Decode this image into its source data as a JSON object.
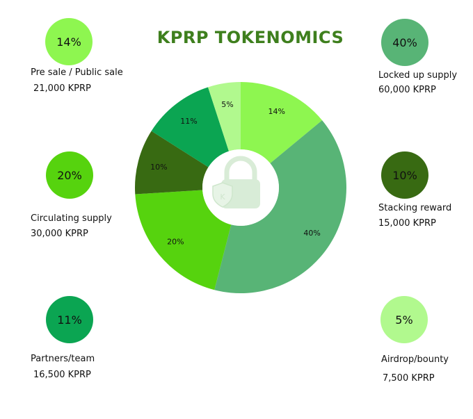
{
  "title": "KPRP TOKENOMICS",
  "chart_data": {
    "type": "pie",
    "title": "KPRP TOKENOMICS",
    "slices": [
      {
        "label": "Pre sale / Public sale",
        "value": 14,
        "display": "14%",
        "amount": "21,000 KPRP",
        "color": "#8ef650"
      },
      {
        "label": "Locked up supply",
        "value": 40,
        "display": "40%",
        "amount": "60,000 KPRP",
        "color": "#58b476"
      },
      {
        "label": "Circulating supply",
        "value": 20,
        "display": "20%",
        "amount": "30,000 KPRP",
        "color": "#56d30e"
      },
      {
        "label": "Stacking reward",
        "value": 10,
        "display": "10%",
        "amount": "15,000 KPRP",
        "color": "#386a12"
      },
      {
        "label": "Partners/team",
        "value": 11,
        "display": "11%",
        "amount": "16,500 KPRP",
        "color": "#0ba552"
      },
      {
        "label": "Airdrop/bounty",
        "value": 5,
        "display": "5%",
        "amount": "7,500 KPRP",
        "color": "#b1f98e"
      }
    ]
  },
  "center_icon": "lock-icon",
  "legend": [
    {
      "label": "Pre sale / Public sale",
      "amount": "21,000 KPRP",
      "display": "14%",
      "color": "#8ef650"
    },
    {
      "label": "Locked up supply",
      "amount": "60,000 KPRP",
      "display": "40%",
      "color": "#58b476"
    },
    {
      "label": "Circulating supply",
      "amount": "30,000 KPRP",
      "display": "20%",
      "color": "#56d30e"
    },
    {
      "label": "Stacking reward",
      "amount": "15,000 KPRP",
      "display": "10%",
      "color": "#386a12"
    },
    {
      "label": "Partners/team",
      "amount": "16,500 KPRP",
      "display": "11%",
      "color": "#0ba552"
    },
    {
      "label": "Airdrop/bounty",
      "amount": "7,500 KPRP",
      "display": "5%",
      "color": "#b1f98e"
    }
  ]
}
